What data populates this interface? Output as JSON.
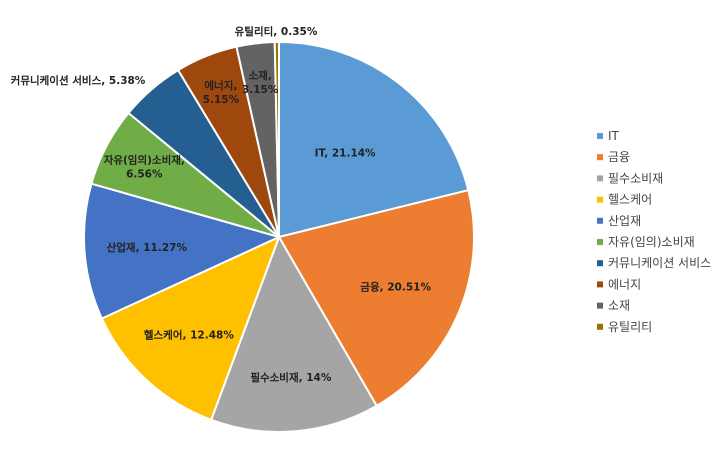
{
  "chart_data": {
    "type": "pie",
    "title": "",
    "legend_position": "right",
    "slices": [
      {
        "name": "IT",
        "value": 21.14,
        "label": "IT, 21.14%",
        "color": "#5B9BD5"
      },
      {
        "name": "금융",
        "value": 20.51,
        "label": "금융, 20.51%",
        "color": "#ED7D31"
      },
      {
        "name": "필수소비재",
        "value": 14,
        "label": "필수소비재, 14%",
        "color": "#A5A5A5"
      },
      {
        "name": "헬스케어",
        "value": 12.48,
        "label": "헬스케어, 12.48%",
        "color": "#FFC000"
      },
      {
        "name": "산업재",
        "value": 11.27,
        "label": "산업재, 11.27%",
        "color": "#4472C4"
      },
      {
        "name": "자유(임의)소비재",
        "value": 6.56,
        "label": [
          "자유(임의)소비재,",
          "6.56%"
        ],
        "color": "#70AD47"
      },
      {
        "name": "커뮤니케이션 서비스",
        "value": 5.38,
        "label": "커뮤니케이션 서비스, 5.38%",
        "color": "#255E91"
      },
      {
        "name": "에너지",
        "value": 5.15,
        "label": [
          "에너지,",
          "5.15%"
        ],
        "color": "#9E480E"
      },
      {
        "name": "소재",
        "value": 3.15,
        "label": [
          "소재,",
          "3.15%"
        ],
        "color": "#636363"
      },
      {
        "name": "유틸리티",
        "value": 0.35,
        "label": "유틸리티, 0.35%",
        "color": "#997300"
      }
    ]
  }
}
